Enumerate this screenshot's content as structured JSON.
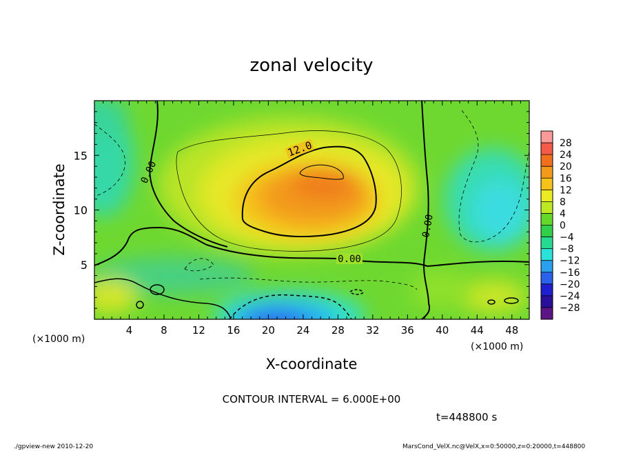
{
  "chart_data": {
    "type": "heatmap",
    "title": "zonal velocity",
    "xlabel": "X-coordinate",
    "ylabel": "Z-coordinate",
    "x_unit": "(×1000 m)",
    "xlim": [
      0,
      50
    ],
    "ylim": [
      0,
      20
    ],
    "x_ticks": [
      "4",
      "8",
      "12",
      "16",
      "20",
      "24",
      "28",
      "32",
      "36",
      "40",
      "44",
      "48"
    ],
    "y_ticks": [
      "5",
      "10",
      "15"
    ],
    "colorbar": {
      "levels": [
        "28",
        "24",
        "20",
        "16",
        "12",
        "8",
        "4",
        "0",
        "−4",
        "−8",
        "−12",
        "−16",
        "−20",
        "−24",
        "−28"
      ],
      "colors": [
        "#fb9a9a",
        "#f45a4a",
        "#f07020",
        "#f39a1c",
        "#f6c31c",
        "#eaeb23",
        "#bde824",
        "#66d828",
        "#32d04a",
        "#28d992",
        "#2ae2da",
        "#2aa0ee",
        "#2b62ec",
        "#1f1fd0",
        "#2a0f9a",
        "#5d1585"
      ]
    },
    "contour_labels": [
      "12.0",
      "0.00",
      "0.00",
      "0.00"
    ],
    "contour_interval_text": "CONTOUR INTERVAL = 6.000E+00",
    "time_text": "t=448800 s",
    "footer_left": "./gpview-new  2010-12-20",
    "footer_right": "MarsCond_VelX.nc@VelX,x=0:50000,z=0:20000,t=448800"
  }
}
